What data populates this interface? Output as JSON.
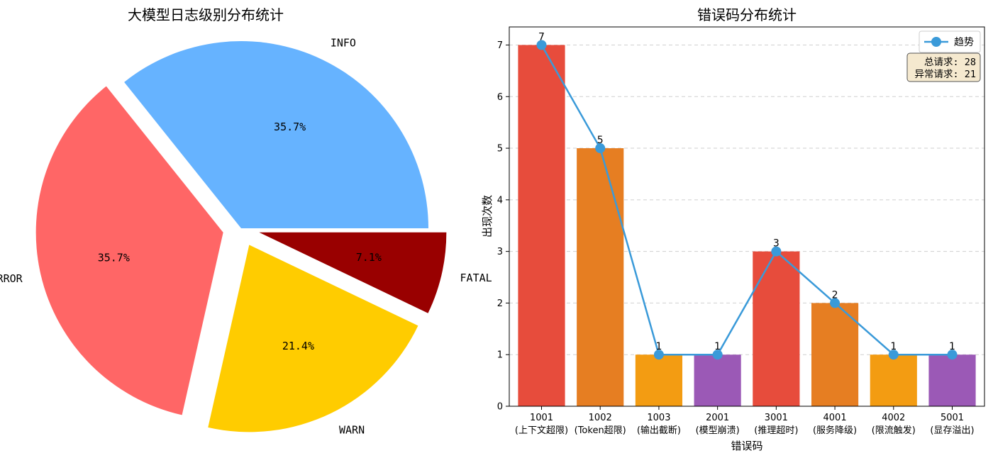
{
  "chart_data": [
    {
      "type": "pie",
      "title": "大模型日志级别分布统计",
      "slices": [
        {
          "label": "INFO",
          "value": 35.7,
          "pct_label": "35.7%",
          "color": "#66b3ff",
          "explode": 0
        },
        {
          "label": "ERROR",
          "value": 35.7,
          "pct_label": "35.7%",
          "color": "#ff6666",
          "explode": 1
        },
        {
          "label": "WARN",
          "value": 21.4,
          "pct_label": "21.4%",
          "color": "#ffcc00",
          "explode": 1
        },
        {
          "label": "FATAL",
          "value": 7.1,
          "pct_label": "7.1%",
          "color": "#990000",
          "explode": 1
        }
      ]
    },
    {
      "type": "bar",
      "title": "错误码分布统计",
      "xlabel": "错误码",
      "ylabel": "出现次数",
      "ylim": [
        0,
        7.35
      ],
      "yticks": [
        "0",
        "1",
        "2",
        "3",
        "4",
        "5",
        "6",
        "7"
      ],
      "grid": "y-dashed",
      "categories": [
        {
          "code": "1001",
          "desc": "(上下文超限)"
        },
        {
          "code": "1002",
          "desc": "(Token超限)"
        },
        {
          "code": "1003",
          "desc": "(输出截断)"
        },
        {
          "code": "2001",
          "desc": "(模型崩溃)"
        },
        {
          "code": "3001",
          "desc": "(推理超时)"
        },
        {
          "code": "4001",
          "desc": "(服务降级)"
        },
        {
          "code": "4002",
          "desc": "(限流触发)"
        },
        {
          "code": "5001",
          "desc": "(显存溢出)"
        }
      ],
      "values": [
        7,
        5,
        1,
        1,
        3,
        2,
        1,
        1
      ],
      "bar_colors": [
        "#e74c3c",
        "#e67e22",
        "#f39c12",
        "#9b59b6",
        "#e74c3c",
        "#e67e22",
        "#f39c12",
        "#9b59b6"
      ],
      "series": [
        {
          "name": "趋势",
          "type": "line",
          "values": [
            7,
            5,
            1,
            1,
            3,
            2,
            1,
            1
          ],
          "color": "#3a9ad9"
        }
      ],
      "legend_position": "top-right",
      "summary": {
        "total": "总请求: 28",
        "abnormal": "异常请求: 21"
      }
    }
  ]
}
